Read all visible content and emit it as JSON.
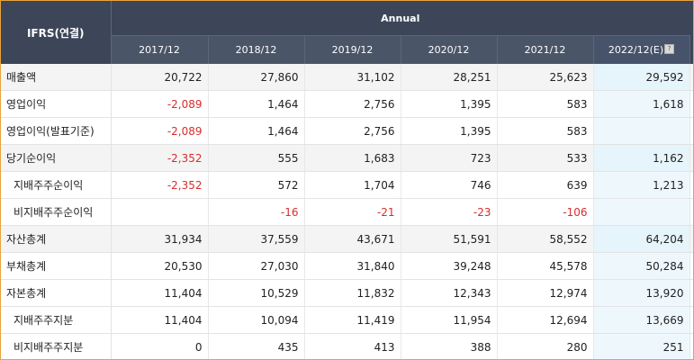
{
  "header": {
    "corner": "IFRS(연결)",
    "annual": "Annual",
    "years": [
      "2017/12",
      "2018/12",
      "2019/12",
      "2020/12",
      "2021/12",
      "2022/12(E)"
    ],
    "help_icon": "question-icon"
  },
  "rows": [
    {
      "label": "매출액",
      "sub": false,
      "gray": true,
      "values": [
        "20,722",
        "27,860",
        "31,102",
        "28,251",
        "25,623",
        "29,592"
      ],
      "neg": [
        false,
        false,
        false,
        false,
        false,
        false
      ]
    },
    {
      "label": "영업이익",
      "sub": false,
      "gray": false,
      "values": [
        "-2,089",
        "1,464",
        "2,756",
        "1,395",
        "583",
        "1,618"
      ],
      "neg": [
        true,
        false,
        false,
        false,
        false,
        false
      ]
    },
    {
      "label": "영업이익(발표기준)",
      "sub": false,
      "gray": false,
      "values": [
        "-2,089",
        "1,464",
        "2,756",
        "1,395",
        "583",
        ""
      ],
      "neg": [
        true,
        false,
        false,
        false,
        false,
        false
      ]
    },
    {
      "label": "당기순이익",
      "sub": false,
      "gray": true,
      "values": [
        "-2,352",
        "555",
        "1,683",
        "723",
        "533",
        "1,162"
      ],
      "neg": [
        true,
        false,
        false,
        false,
        false,
        false
      ]
    },
    {
      "label": "지배주주순이익",
      "sub": true,
      "gray": false,
      "values": [
        "-2,352",
        "572",
        "1,704",
        "746",
        "639",
        "1,213"
      ],
      "neg": [
        true,
        false,
        false,
        false,
        false,
        false
      ]
    },
    {
      "label": "비지배주주순이익",
      "sub": true,
      "gray": false,
      "values": [
        "",
        "-16",
        "-21",
        "-23",
        "-106",
        ""
      ],
      "neg": [
        false,
        true,
        true,
        true,
        true,
        false
      ]
    },
    {
      "label": "자산총계",
      "sub": false,
      "gray": true,
      "values": [
        "31,934",
        "37,559",
        "43,671",
        "51,591",
        "58,552",
        "64,204"
      ],
      "neg": [
        false,
        false,
        false,
        false,
        false,
        false
      ]
    },
    {
      "label": "부채총계",
      "sub": false,
      "gray": false,
      "values": [
        "20,530",
        "27,030",
        "31,840",
        "39,248",
        "45,578",
        "50,284"
      ],
      "neg": [
        false,
        false,
        false,
        false,
        false,
        false
      ]
    },
    {
      "label": "자본총계",
      "sub": false,
      "gray": false,
      "values": [
        "11,404",
        "10,529",
        "11,832",
        "12,343",
        "12,974",
        "13,920"
      ],
      "neg": [
        false,
        false,
        false,
        false,
        false,
        false
      ]
    },
    {
      "label": "지배주주지분",
      "sub": true,
      "gray": false,
      "values": [
        "11,404",
        "10,094",
        "11,419",
        "11,954",
        "12,694",
        "13,669"
      ],
      "neg": [
        false,
        false,
        false,
        false,
        false,
        false
      ]
    },
    {
      "label": "비지배주주지분",
      "sub": true,
      "gray": false,
      "values": [
        "0",
        "435",
        "413",
        "388",
        "280",
        "251"
      ],
      "neg": [
        false,
        false,
        false,
        false,
        false,
        false
      ]
    }
  ],
  "colors": {
    "header_bg": "#3c4658",
    "negative": "#d92c2c",
    "estimate_bg": "#eef8fc",
    "frame": "#e8a33d"
  }
}
